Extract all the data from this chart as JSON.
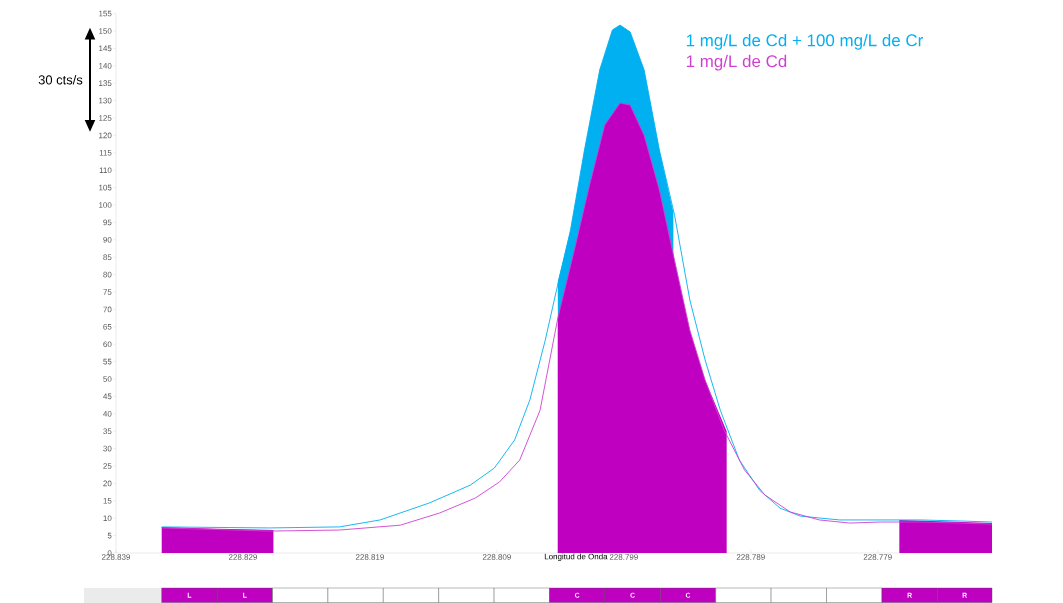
{
  "chart_data": {
    "type": "line",
    "xlabel": "Longitud de Onda",
    "xlim": [
      228.839,
      228.77
    ],
    "xticks": [
      228.839,
      228.829,
      228.819,
      228.809,
      228.799,
      228.789,
      228.779
    ],
    "ylim": [
      0,
      155
    ],
    "yticks": [
      0,
      5,
      10,
      15,
      20,
      25,
      30,
      35,
      40,
      45,
      50,
      55,
      60,
      65,
      70,
      75,
      80,
      85,
      90,
      95,
      100,
      105,
      110,
      115,
      120,
      125,
      130,
      135,
      140,
      145,
      150,
      155
    ],
    "grid": false,
    "marker": "none",
    "line_style": "solid",
    "legend": "top right",
    "series": [
      {
        "name": "1 mg/L de Cd + 100 mg/L de Cr",
        "color": "#00b0f0",
        "x": [
          228.8354,
          228.8269,
          228.8214,
          228.8182,
          228.8143,
          228.8111,
          228.8092,
          228.8076,
          228.8064,
          228.8052,
          228.8043,
          228.8032,
          228.8021,
          228.8009,
          228.7999,
          228.7993,
          228.7985,
          228.7974,
          228.7962,
          228.795,
          228.7938,
          228.7926,
          228.7914,
          228.7899,
          228.7883,
          228.7867,
          228.7851,
          228.782,
          228.7788,
          228.7757,
          228.7725,
          228.77
        ],
        "values": [
          7.5,
          7.2,
          7.5,
          9.5,
          14.4,
          19.5,
          24.4,
          32.5,
          44,
          61,
          75.6,
          92.8,
          115.8,
          138.8,
          150.3,
          151.7,
          149.7,
          138.8,
          115.8,
          97,
          72.7,
          55.5,
          41,
          26.7,
          18,
          12.9,
          10.6,
          9.5,
          9.5,
          9.5,
          9.2,
          8.9
        ]
      },
      {
        "name": "1 mg/L de Cd",
        "color": "#d040d0",
        "x": [
          228.8354,
          228.8269,
          228.8214,
          228.8166,
          228.8135,
          228.8107,
          228.8088,
          228.8072,
          228.8056,
          228.8042,
          228.8029,
          228.8017,
          228.8005,
          228.7993,
          228.7985,
          228.7974,
          228.7962,
          228.795,
          228.7938,
          228.7926,
          228.7911,
          228.7895,
          228.7879,
          228.7859,
          228.7836,
          228.7812,
          228.7788,
          228.7757,
          228.7725,
          228.77
        ],
        "values": [
          7.2,
          6.3,
          6.6,
          8,
          11.5,
          15.8,
          20.4,
          26.7,
          41,
          67.5,
          87,
          105.7,
          123,
          129.3,
          128.7,
          120,
          104.3,
          84,
          64,
          49.7,
          35.3,
          23.9,
          16.7,
          11.8,
          9.5,
          8.6,
          8.9,
          8.9,
          8.6,
          8.3
        ]
      },
      {
        "type": "area",
        "color": "#00b0f0",
        "x": [
          228.8042,
          228.8032,
          228.8021,
          228.8009,
          228.7999,
          228.7993,
          228.7985,
          228.7974,
          228.7962,
          228.7951
        ],
        "values": [
          78,
          92.8,
          115.8,
          138.8,
          150.3,
          151.7,
          149.7,
          138.8,
          115.8,
          98
        ]
      },
      {
        "type": "area",
        "color": "#c000c0",
        "x": [
          228.8042,
          228.8029,
          228.8017,
          228.8005,
          228.7993,
          228.7985,
          228.7974,
          228.7962,
          228.795,
          228.7938,
          228.7926,
          228.7909
        ],
        "values": [
          67.5,
          87,
          105.7,
          123,
          129.3,
          128.7,
          120,
          104.3,
          84,
          64,
          49.7,
          35
        ]
      },
      {
        "type": "area",
        "color": "#c000c0",
        "x": [
          228.8354,
          228.831,
          228.8266
        ],
        "values": [
          7.5,
          7,
          6.6
        ]
      },
      {
        "type": "area",
        "color": "#c000c0",
        "x": [
          228.7773,
          228.7729,
          228.77
        ],
        "values": [
          9.5,
          9,
          8.6
        ]
      }
    ],
    "annotations": [
      "L",
      "L",
      "C",
      "C",
      "C",
      "R",
      "R",
      "30 cts/s"
    ]
  }
}
